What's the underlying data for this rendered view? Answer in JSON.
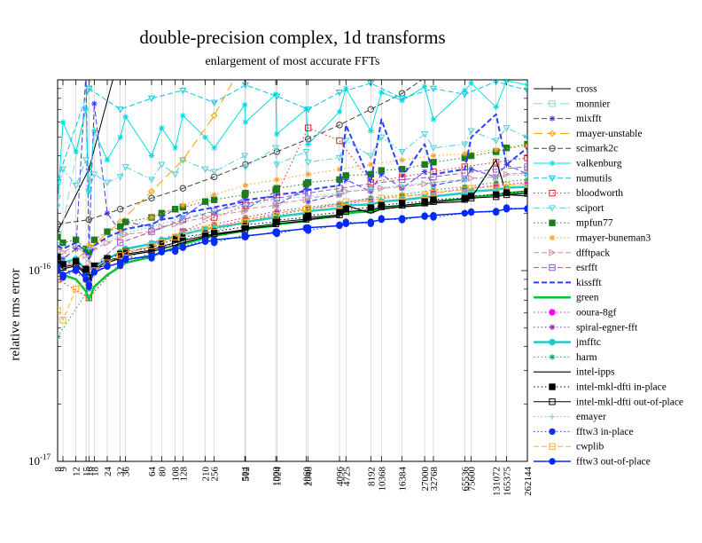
{
  "chart_data": {
    "type": "line",
    "title": "double-precision complex, 1d transforms",
    "subtitle": "enlargement of most accurate FFTs",
    "ylabel": "relative rms error",
    "x_scale": "log",
    "y_scale": "log",
    "grid": "vertical",
    "legend_position": "right",
    "ylim": [
      1e-17,
      1e-15
    ],
    "value_scale": 1e-16,
    "y_ticks": [
      {
        "base": "10",
        "exp": "-16",
        "units": 1
      },
      {
        "base": "10",
        "exp": "-17",
        "units": 0.1
      }
    ],
    "x_values": [
      8,
      9,
      12,
      15,
      16,
      18,
      24,
      32,
      36,
      64,
      80,
      108,
      128,
      210,
      256,
      504,
      512,
      1000,
      1024,
      1960,
      2048,
      4096,
      4725,
      8192,
      10368,
      16384,
      27000,
      32768,
      65536,
      75600,
      131072,
      165375,
      262144
    ],
    "series": [
      {
        "name": "cross",
        "color": "#000000",
        "dash": "solid",
        "marker": "plus",
        "width": 1,
        "values": [
          1.6,
          null,
          null,
          null,
          3.4,
          null,
          null,
          14,
          null,
          null,
          null,
          null,
          null,
          null,
          null,
          null,
          null,
          null,
          null,
          null,
          null,
          null,
          null,
          null,
          null,
          null,
          null,
          null,
          null,
          null,
          null,
          null,
          null
        ]
      },
      {
        "name": "monnier",
        "color": "#8fd8c8",
        "dash": "longdash",
        "marker": "square-open",
        "width": 1,
        "values": [
          1.25,
          null,
          null,
          null,
          9,
          null,
          null,
          34,
          null,
          null,
          null,
          null,
          null,
          null,
          null,
          null,
          null,
          null,
          null,
          null,
          null,
          null,
          null,
          null,
          null,
          null,
          null,
          null,
          null,
          null,
          null,
          null,
          null
        ]
      },
      {
        "name": "mixfft",
        "color": "#3a3aff",
        "dash": "dash",
        "marker": "asterisk",
        "width": 1,
        "values": [
          1.0,
          1.15,
          1.3,
          11,
          1.25,
          7.5,
          2.0,
          1.6,
          1.8,
          1.7,
          1.9,
          2.1,
          1.9,
          2.3,
          2.0,
          2.4,
          2.1,
          2.6,
          2.2,
          2.7,
          2.3,
          2.5,
          3.0,
          2.6,
          3.2,
          2.7,
          3.3,
          2.8,
          3.0,
          3.4,
          3.1,
          3.6,
          3.2
        ]
      },
      {
        "name": "rmayer-unstable",
        "color": "#ff9c00",
        "dash": "longdash",
        "marker": "diamond-open",
        "width": 1,
        "values": [
          0.95,
          null,
          null,
          null,
          1.3,
          null,
          null,
          1.8,
          null,
          2.6,
          null,
          null,
          3.8,
          null,
          6.5,
          null,
          13,
          null,
          null,
          null,
          null,
          null,
          null,
          null,
          null,
          null,
          null,
          null,
          null,
          null,
          null,
          null,
          null
        ]
      },
      {
        "name": "scimark2c",
        "color": "#404040",
        "dash": "dash",
        "marker": "circle-open",
        "width": 1,
        "values": [
          1.75,
          null,
          null,
          null,
          1.85,
          null,
          null,
          2.1,
          null,
          2.4,
          null,
          null,
          2.7,
          null,
          3.1,
          null,
          3.6,
          null,
          4.2,
          null,
          4.9,
          5.8,
          null,
          7.0,
          null,
          8.5,
          null,
          11,
          null,
          null,
          null,
          null,
          null
        ]
      },
      {
        "name": "valkenburg",
        "color": "#00dce0",
        "dash": "solid",
        "marker": "asterisk",
        "width": 1,
        "values": [
          2.2,
          6.0,
          4.2,
          7.0,
          2.6,
          5.4,
          3.8,
          5.0,
          6.4,
          4.0,
          5.6,
          4.4,
          6.5,
          5.0,
          4.4,
          7.4,
          6.0,
          8.4,
          5.2,
          7.0,
          4.6,
          6.8,
          9.0,
          5.4,
          8.6,
          7.8,
          9.2,
          6.2,
          8.8,
          9.6,
          7.2,
          9.9,
          9.4
        ]
      },
      {
        "name": "numutils",
        "color": "#00c8e8",
        "dash": "dash",
        "marker": "triangle-down-open",
        "width": 1,
        "values": [
          3.0,
          null,
          null,
          null,
          9.0,
          null,
          null,
          7.0,
          null,
          8.0,
          null,
          null,
          8.8,
          null,
          7.6,
          null,
          9.4,
          null,
          8.2,
          null,
          7.0,
          8.6,
          null,
          9.6,
          null,
          8.0,
          null,
          9.0,
          8.4,
          null,
          9.8,
          null,
          8.8
        ]
      },
      {
        "name": "bloodworth",
        "color": "#e82020",
        "dash": "dot",
        "marker": "square-open",
        "width": 1,
        "values": [
          0.9,
          null,
          null,
          null,
          0.72,
          null,
          null,
          1.1,
          null,
          1.35,
          null,
          null,
          1.6,
          null,
          1.9,
          null,
          2.2,
          null,
          2.5,
          null,
          5.6,
          4.8,
          null,
          2.9,
          null,
          3.1,
          null,
          3.3,
          3.5,
          null,
          3.7,
          null,
          3.9
        ]
      },
      {
        "name": "sciport",
        "color": "#50d0dc",
        "dash": "dashdot",
        "marker": "triangle-down-open",
        "width": 1,
        "values": [
          2.4,
          3.4,
          2.8,
          3.8,
          2.6,
          3.2,
          2.9,
          3.1,
          3.5,
          3.0,
          3.6,
          3.2,
          3.8,
          3.4,
          3.3,
          4.0,
          3.5,
          4.4,
          3.6,
          4.2,
          3.7,
          3.9,
          4.8,
          4.0,
          5.0,
          4.2,
          5.2,
          4.4,
          4.6,
          5.4,
          4.8,
          5.6,
          5.0
        ]
      },
      {
        "name": "mpfun77",
        "color": "#1f7a1f",
        "dash": "dot",
        "marker": "square-filled",
        "width": 1,
        "values": [
          1.5,
          1.4,
          1.45,
          1.3,
          1.25,
          1.45,
          1.6,
          1.7,
          1.8,
          1.9,
          2.0,
          2.1,
          2.15,
          2.3,
          2.35,
          2.5,
          2.55,
          2.65,
          2.7,
          2.85,
          2.9,
          3.0,
          3.15,
          3.2,
          3.35,
          3.4,
          3.6,
          3.7,
          3.9,
          4.0,
          4.2,
          4.4,
          4.6
        ]
      },
      {
        "name": "rmayer-buneman3",
        "color": "#ffa020",
        "dash": "dot",
        "marker": "asterisk",
        "width": 1,
        "values": [
          1.2,
          null,
          null,
          null,
          1.35,
          null,
          null,
          1.6,
          null,
          1.9,
          null,
          null,
          2.2,
          null,
          2.5,
          null,
          2.8,
          null,
          3.0,
          null,
          3.2,
          3.4,
          null,
          3.6,
          null,
          3.8,
          null,
          4.0,
          4.1,
          null,
          4.3,
          null,
          4.5
        ]
      },
      {
        "name": "dfftpack",
        "color": "#cc8f9f",
        "dash": "dash",
        "marker": "triangle-right-open",
        "width": 1,
        "values": [
          1.3,
          1.25,
          1.35,
          1.2,
          1.1,
          1.3,
          1.4,
          1.5,
          1.55,
          1.6,
          1.7,
          1.75,
          1.8,
          1.9,
          1.95,
          2.05,
          2.1,
          2.2,
          2.25,
          2.35,
          2.4,
          2.5,
          2.6,
          2.65,
          2.7,
          2.75,
          2.85,
          2.9,
          3.0,
          3.05,
          3.1,
          3.2,
          3.25
        ]
      },
      {
        "name": "esrfft",
        "color": "#9b59c0",
        "dash": "dash",
        "marker": "square-open",
        "width": 1,
        "values": [
          1.1,
          null,
          null,
          null,
          1.0,
          null,
          null,
          1.4,
          null,
          1.6,
          null,
          null,
          1.85,
          null,
          2.05,
          null,
          2.25,
          null,
          2.4,
          null,
          2.55,
          2.7,
          null,
          2.85,
          null,
          3.0,
          null,
          3.1,
          3.25,
          null,
          3.4,
          null,
          3.5
        ]
      },
      {
        "name": "kissfft",
        "color": "#2840ff",
        "dash": "dash",
        "marker": "none",
        "width": 2,
        "values": [
          1.35,
          1.3,
          1.4,
          1.25,
          1.15,
          1.35,
          1.5,
          1.6,
          1.65,
          1.75,
          1.85,
          1.9,
          2.0,
          2.1,
          2.15,
          2.3,
          2.35,
          2.45,
          2.5,
          2.6,
          2.65,
          2.8,
          5.8,
          2.9,
          6.2,
          3.1,
          4.6,
          3.2,
          3.4,
          5.0,
          6.6,
          3.6,
          4.4
        ]
      },
      {
        "name": "green",
        "color": "#00c830",
        "dash": "solid",
        "marker": "none",
        "width": 2.5,
        "values": [
          1.05,
          0.95,
          0.9,
          0.78,
          0.7,
          0.82,
          0.95,
          1.05,
          1.1,
          1.18,
          1.25,
          1.32,
          1.38,
          1.48,
          1.52,
          1.62,
          1.65,
          1.72,
          1.75,
          1.82,
          1.85,
          1.95,
          2.0,
          2.05,
          2.12,
          2.18,
          2.25,
          2.3,
          2.38,
          2.42,
          2.5,
          2.55,
          2.6
        ]
      },
      {
        "name": "ooura-8gf",
        "color": "#ff00ff",
        "dash": "dot",
        "marker": "circle-filled",
        "width": 1,
        "values": [
          1.15,
          null,
          null,
          null,
          0.95,
          null,
          null,
          1.2,
          null,
          1.35,
          null,
          null,
          1.55,
          null,
          1.7,
          null,
          1.85,
          null,
          2.0,
          null,
          2.1,
          2.2,
          null,
          2.35,
          null,
          2.45,
          null,
          2.55,
          2.7,
          null,
          2.8,
          null,
          2.9
        ]
      },
      {
        "name": "spiral-egner-fft",
        "color": "#8a2a9a",
        "dash": "dot",
        "marker": "asterisk",
        "width": 1,
        "values": [
          1.05,
          null,
          null,
          null,
          0.9,
          null,
          null,
          1.25,
          null,
          1.4,
          null,
          null,
          1.6,
          null,
          1.75,
          null,
          1.9,
          null,
          2.05,
          null,
          2.15,
          2.25,
          null,
          2.4,
          null,
          null,
          null,
          null,
          null,
          null,
          null,
          null,
          null
        ]
      },
      {
        "name": "jmfftc",
        "color": "#28c8c8",
        "dash": "solid",
        "marker": "circle-filled",
        "width": 2.5,
        "values": [
          1.2,
          1.1,
          1.15,
          1.0,
          0.92,
          1.05,
          1.15,
          1.25,
          1.3,
          1.38,
          1.45,
          1.5,
          1.55,
          1.65,
          1.68,
          1.78,
          1.8,
          1.9,
          1.92,
          2.0,
          2.05,
          2.12,
          2.2,
          2.22,
          2.3,
          2.35,
          2.42,
          2.45,
          2.55,
          2.6,
          2.65,
          2.72,
          2.75
        ]
      },
      {
        "name": "harm",
        "color": "#20a050",
        "dash": "dot",
        "marker": "asterisk",
        "width": 1,
        "values": [
          0.45,
          null,
          null,
          null,
          0.8,
          null,
          null,
          1.05,
          null,
          1.25,
          null,
          null,
          1.45,
          null,
          1.62,
          null,
          1.8,
          null,
          1.95,
          null,
          2.1,
          2.25,
          null,
          2.4,
          null,
          2.5,
          null,
          2.65,
          2.75,
          null,
          2.9,
          null,
          3.0
        ]
      },
      {
        "name": "intel-ipps",
        "color": "#000000",
        "dash": "solid",
        "marker": "none",
        "width": 1.2,
        "values": [
          1.12,
          1.02,
          1.06,
          0.96,
          0.86,
          1.0,
          1.1,
          1.16,
          1.2,
          1.26,
          1.3,
          1.36,
          1.4,
          1.5,
          1.54,
          1.62,
          1.66,
          1.72,
          1.76,
          1.82,
          1.86,
          1.92,
          2.2,
          2.0,
          2.1,
          2.16,
          2.2,
          2.26,
          2.3,
          2.4,
          3.8,
          2.5,
          2.46
        ]
      },
      {
        "name": "intel-mkl-dfti in-place",
        "color": "#000000",
        "dash": "dot",
        "marker": "square-filled",
        "width": 1,
        "values": [
          1.18,
          1.08,
          1.12,
          1.02,
          0.92,
          1.06,
          1.16,
          1.22,
          1.26,
          1.32,
          1.38,
          1.46,
          1.5,
          1.56,
          1.6,
          1.7,
          1.74,
          1.8,
          1.84,
          1.9,
          1.94,
          2.02,
          2.1,
          2.14,
          2.2,
          2.26,
          2.3,
          2.36,
          2.4,
          2.46,
          2.5,
          2.56,
          2.6
        ]
      },
      {
        "name": "intel-mkl-dfti out-of-place",
        "color": "#000000",
        "dash": "solid",
        "marker": "square-open",
        "width": 1,
        "values": [
          1.14,
          1.04,
          1.08,
          0.98,
          0.88,
          1.02,
          1.12,
          1.18,
          1.22,
          1.28,
          1.34,
          1.4,
          1.44,
          1.52,
          1.56,
          1.64,
          1.68,
          1.76,
          1.8,
          1.86,
          1.9,
          1.96,
          2.04,
          2.08,
          2.16,
          2.2,
          2.26,
          2.3,
          2.36,
          2.4,
          2.44,
          2.5,
          2.54
        ]
      },
      {
        "name": "emayer",
        "color": "#58d8d8",
        "dash": "dot",
        "marker": "plus",
        "width": 1,
        "values": [
          1.4,
          null,
          null,
          null,
          1.3,
          null,
          null,
          1.55,
          null,
          1.7,
          null,
          null,
          1.9,
          null,
          2.05,
          null,
          2.2,
          null,
          2.35,
          null,
          2.45,
          2.55,
          null,
          2.7,
          null,
          2.8,
          null,
          2.9,
          3.0,
          null,
          3.1,
          null,
          3.2
        ]
      },
      {
        "name": "fftw3 in-place",
        "color": "#1030e0",
        "dash": "dot",
        "marker": "circle-filled",
        "width": 1,
        "values": [
          1.05,
          0.92,
          1.0,
          0.94,
          0.82,
          1.0,
          1.08,
          1.06,
          1.18,
          1.16,
          1.28,
          1.26,
          1.34,
          1.44,
          1.4,
          1.54,
          1.5,
          1.6,
          1.56,
          1.68,
          1.62,
          1.74,
          1.8,
          1.76,
          1.88,
          1.84,
          1.94,
          1.9,
          2.0,
          2.04,
          2.02,
          2.14,
          2.1
        ]
      },
      {
        "name": "cwplib",
        "color": "#ffb028",
        "dash": "dash",
        "marker": "square-open",
        "width": 1,
        "values": [
          0.62,
          0.55,
          0.8,
          0.9,
          0.85,
          1.0,
          1.1,
          1.2,
          1.25,
          1.35,
          1.4,
          1.5,
          1.55,
          1.65,
          1.7,
          1.8,
          1.85,
          1.95,
          2.0,
          2.1,
          2.12,
          2.2,
          2.3,
          2.32,
          2.4,
          2.45,
          2.5,
          2.55,
          2.65,
          2.7,
          2.75,
          2.8,
          2.85
        ]
      },
      {
        "name": "fftw3 out-of-place",
        "color": "#0028ff",
        "dash": "solid",
        "marker": "circle-filled",
        "width": 1.5,
        "values": [
          1.0,
          0.95,
          1.02,
          0.9,
          0.84,
          0.98,
          1.05,
          1.1,
          1.14,
          1.2,
          1.25,
          1.3,
          1.32,
          1.42,
          1.45,
          1.5,
          1.52,
          1.58,
          1.6,
          1.66,
          1.68,
          1.72,
          1.76,
          1.8,
          1.85,
          1.88,
          1.92,
          1.95,
          2.0,
          2.02,
          2.05,
          2.1,
          2.12
        ]
      }
    ]
  }
}
